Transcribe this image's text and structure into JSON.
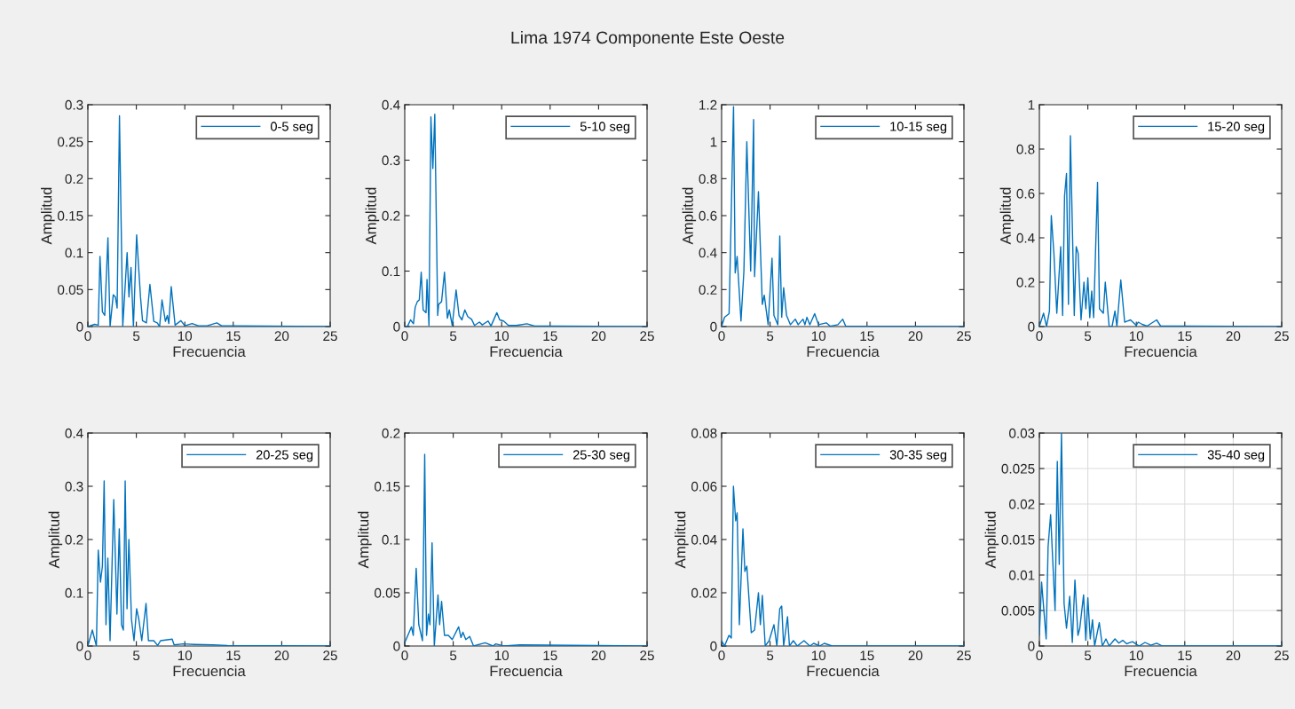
{
  "chart_data": [
    {
      "type": "line",
      "xlabel": "Frecuencia",
      "ylabel": "Amplitud",
      "xlim": [
        0,
        25
      ],
      "ylim": [
        0,
        0.3
      ],
      "xticks": [
        0,
        5,
        10,
        15,
        20,
        25
      ],
      "yticks": [
        0,
        0.05,
        0.1,
        0.15,
        0.2,
        0.25,
        0.3
      ],
      "legend": "top right",
      "grid": false,
      "series": [
        {
          "name": "0-5 seg",
          "color": "#0072bd",
          "x": [
            0,
            0.7,
            1.07,
            1.25,
            1.5,
            1.74,
            2.07,
            2.29,
            2.62,
            2.84,
            3.02,
            3.26,
            3.6,
            4.05,
            4.24,
            4.45,
            4.7,
            5.03,
            5.43,
            5.64,
            6.04,
            6.4,
            6.8,
            7.16,
            7.4,
            7.65,
            8.0,
            8.2,
            8.35,
            8.6,
            9.0,
            9.6,
            10.0,
            10.76,
            11.4,
            12.3,
            13.3,
            13.8,
            15,
            25
          ],
          "values": [
            0,
            0.003,
            0.002,
            0.095,
            0.02,
            0.015,
            0.12,
            0,
            0.043,
            0.04,
            0.025,
            0.285,
            0,
            0.1,
            0.04,
            0.08,
            0,
            0.124,
            0.04,
            0.008,
            0.005,
            0.057,
            0.007,
            0.005,
            0,
            0.036,
            0.007,
            0.015,
            0.004,
            0.054,
            0.002,
            0.008,
            0.001,
            0.004,
            0.001,
            0.001,
            0.005,
            0.001,
            0.001,
            0
          ]
        }
      ]
    },
    {
      "type": "line",
      "title": "Lima 1974 Componente Este Oeste",
      "xlabel": "Frecuencia",
      "ylabel": "Amplitud",
      "xlim": [
        0,
        25
      ],
      "ylim": [
        0,
        0.4
      ],
      "xticks": [
        0,
        5,
        10,
        15,
        20,
        25
      ],
      "yticks": [
        0,
        0.1,
        0.2,
        0.3,
        0.4
      ],
      "legend": "top right",
      "grid": false,
      "series": [
        {
          "name": "5-10 seg",
          "color": "#0072bd",
          "x": [
            0,
            0.3,
            0.6,
            0.9,
            1.08,
            1.3,
            1.5,
            1.7,
            1.9,
            2.2,
            2.3,
            2.5,
            2.7,
            2.9,
            3.1,
            3.4,
            3.5,
            3.8,
            4.1,
            4.4,
            4.6,
            4.9,
            5.3,
            5.6,
            5.9,
            6.2,
            6.5,
            6.9,
            7.2,
            7.7,
            8.0,
            8.6,
            8.9,
            9.5,
            9.8,
            10.2,
            10.7,
            11.5,
            12.6,
            13.4,
            15,
            25
          ],
          "values": [
            0,
            0.001,
            0.012,
            0.005,
            0.035,
            0.045,
            0.048,
            0.098,
            0.03,
            0.025,
            0.085,
            0.002,
            0.378,
            0.285,
            0.383,
            0.02,
            0.04,
            0.045,
            0.098,
            0.015,
            0.03,
            0.002,
            0.066,
            0.02,
            0.012,
            0.03,
            0.018,
            0.013,
            0.002,
            0.008,
            0.003,
            0.01,
            0.001,
            0.025,
            0.012,
            0.01,
            0.002,
            0.002,
            0.005,
            0.001,
            0.001,
            0
          ]
        }
      ]
    },
    {
      "type": "line",
      "xlabel": "Frecuencia",
      "ylabel": "Amplitud",
      "xlim": [
        0,
        25
      ],
      "ylim": [
        0,
        1.2
      ],
      "xticks": [
        0,
        5,
        10,
        15,
        20,
        25
      ],
      "yticks": [
        0,
        0.2,
        0.4,
        0.6,
        0.8,
        1,
        1.2
      ],
      "legend": "top right",
      "grid": false,
      "series": [
        {
          "name": "10-15 seg",
          "color": "#0072bd",
          "x": [
            0,
            0.3,
            0.77,
            1.23,
            1.4,
            1.6,
            2.0,
            2.3,
            2.6,
            3.0,
            3.3,
            3.4,
            3.8,
            4.2,
            4.4,
            4.8,
            5.2,
            5.4,
            5.8,
            6.0,
            6.2,
            6.4,
            6.7,
            7.1,
            7.6,
            7.9,
            8.4,
            8.6,
            8.8,
            9.1,
            9.6,
            10.0,
            10.8,
            11.2,
            12.0,
            12.5,
            12.8,
            15.1,
            25
          ],
          "values": [
            0,
            0.05,
            0.07,
            1.19,
            0.29,
            0.38,
            0.03,
            0.3,
            1.0,
            0.3,
            1.12,
            0.27,
            0.73,
            0.12,
            0.17,
            0.01,
            0.37,
            0.06,
            0.01,
            0.49,
            0.05,
            0.21,
            0.06,
            0.01,
            0.04,
            0.01,
            0.04,
            0.01,
            0.05,
            0.01,
            0.07,
            0.01,
            0.02,
            0.002,
            0.01,
            0.04,
            0.002,
            0.002,
            0
          ]
        }
      ]
    },
    {
      "type": "line",
      "xlabel": "Frecuencia",
      "ylabel": "Amplitud",
      "xlim": [
        0,
        25
      ],
      "ylim": [
        0,
        1
      ],
      "xticks": [
        0,
        5,
        10,
        15,
        20,
        25
      ],
      "yticks": [
        0,
        0.2,
        0.4,
        0.6,
        0.8,
        1
      ],
      "legend": "top right",
      "grid": false,
      "series": [
        {
          "name": "15-20 seg",
          "color": "#0072bd",
          "x": [
            0,
            0.43,
            0.74,
            1.04,
            1.23,
            1.5,
            1.8,
            2.2,
            2.4,
            2.6,
            2.8,
            3.0,
            3.2,
            3.6,
            3.8,
            4.0,
            4.3,
            4.6,
            4.8,
            5.0,
            5.2,
            5.4,
            5.6,
            6.0,
            6.2,
            6.6,
            6.8,
            7.2,
            7.5,
            7.8,
            8.0,
            8.4,
            8.8,
            9.4,
            10.0,
            10.2,
            10.6,
            11.1,
            12.1,
            12.5,
            14.6,
            25
          ],
          "values": [
            0,
            0.06,
            0,
            0.07,
            0.5,
            0.33,
            0.06,
            0.36,
            0.05,
            0.59,
            0.69,
            0.1,
            0.86,
            0.05,
            0.36,
            0.33,
            0.03,
            0.2,
            0.08,
            0.22,
            0.04,
            0.16,
            0.04,
            0.65,
            0.08,
            0.06,
            0.2,
            0,
            0,
            0.07,
            0,
            0.21,
            0.02,
            0.03,
            0.005,
            0.02,
            0.01,
            0.002,
            0.03,
            0.003,
            0.002,
            0
          ]
        }
      ]
    },
    {
      "type": "line",
      "xlabel": "Frecuencia",
      "ylabel": "Amplitud",
      "xlim": [
        0,
        25
      ],
      "ylim": [
        0,
        0.4
      ],
      "xticks": [
        0,
        5,
        10,
        15,
        20,
        25
      ],
      "yticks": [
        0,
        0.1,
        0.2,
        0.3,
        0.4
      ],
      "legend": "top right",
      "grid": false,
      "series": [
        {
          "name": "20-25 seg",
          "color": "#0072bd",
          "x": [
            0,
            0.46,
            0.88,
            1.07,
            1.3,
            1.5,
            1.68,
            1.87,
            2.06,
            2.29,
            2.67,
            3.0,
            3.24,
            3.47,
            3.66,
            3.85,
            4.04,
            4.23,
            4.5,
            4.76,
            5.03,
            5.26,
            5.56,
            6.0,
            6.25,
            6.6,
            6.8,
            7.2,
            7.5,
            8.7,
            8.9,
            9.8,
            11,
            12.9,
            14.4,
            25
          ],
          "values": [
            0,
            0.03,
            0,
            0.18,
            0.12,
            0.15,
            0.31,
            0.04,
            0.165,
            0.01,
            0.275,
            0.06,
            0.22,
            0.04,
            0.03,
            0.31,
            0.07,
            0.2,
            0.05,
            0.01,
            0.07,
            0.05,
            0.01,
            0.08,
            0.01,
            0.01,
            0.01,
            0.001,
            0.01,
            0.013,
            0.002,
            0.004,
            0.003,
            0.002,
            0.001,
            0
          ]
        }
      ]
    },
    {
      "type": "line",
      "xlabel": "Frecuencia",
      "ylabel": "Amplitud",
      "xlim": [
        0,
        25
      ],
      "ylim": [
        0,
        0.2
      ],
      "xticks": [
        0,
        5,
        10,
        15,
        20,
        25
      ],
      "yticks": [
        0,
        0.05,
        0.1,
        0.15,
        0.2
      ],
      "legend": "top right",
      "grid": false,
      "series": [
        {
          "name": "25-30 seg",
          "color": "#0072bd",
          "x": [
            0,
            0.69,
            0.88,
            1.18,
            1.45,
            1.83,
            2.06,
            2.25,
            2.44,
            2.6,
            2.82,
            3.05,
            3.43,
            3.6,
            3.8,
            4.1,
            4.5,
            4.9,
            5.56,
            5.8,
            6.0,
            6.3,
            6.7,
            7.1,
            8.3,
            9.1,
            9.4,
            10.2,
            11.9,
            25
          ],
          "values": [
            0.003,
            0.018,
            0.01,
            0.073,
            0.02,
            0.005,
            0.18,
            0.01,
            0.03,
            0.02,
            0.097,
            0,
            0.048,
            0.02,
            0.042,
            0.01,
            0.01,
            0.006,
            0.018,
            0.008,
            0.013,
            0.006,
            0.009,
            0,
            0.003,
            0,
            0.002,
            0,
            0.001,
            0
          ]
        }
      ]
    },
    {
      "type": "line",
      "xlabel": "Frecuencia",
      "ylabel": "Amplitud",
      "xlim": [
        0,
        25
      ],
      "ylim": [
        0,
        0.08
      ],
      "xticks": [
        0,
        5,
        10,
        15,
        20,
        25
      ],
      "yticks": [
        0,
        0.02,
        0.04,
        0.06,
        0.08
      ],
      "legend": "top right",
      "grid": false,
      "series": [
        {
          "name": "30-35 seg",
          "color": "#0072bd",
          "x": [
            0,
            0.3,
            0.76,
            1.0,
            1.22,
            1.45,
            1.6,
            1.83,
            2.2,
            2.4,
            2.6,
            3.06,
            3.4,
            3.8,
            4.0,
            4.2,
            4.5,
            4.9,
            5.4,
            5.7,
            6.0,
            6.2,
            6.4,
            6.8,
            7.0,
            7.4,
            7.8,
            8.5,
            9.1,
            9.5,
            10.1,
            10.6,
            11.4,
            25
          ],
          "values": [
            0.002,
            0,
            0.004,
            0.003,
            0.06,
            0.047,
            0.05,
            0.008,
            0.044,
            0.028,
            0.03,
            0.005,
            0.006,
            0.02,
            0.008,
            0.019,
            0,
            0.002,
            0.008,
            0,
            0.014,
            0.015,
            0,
            0.011,
            0,
            0.002,
            0,
            0.002,
            0,
            0.001,
            0,
            0.001,
            0,
            0
          ]
        }
      ]
    },
    {
      "type": "line",
      "xlabel": "Frecuencia",
      "ylabel": "Amplitud",
      "xlim": [
        0,
        25
      ],
      "ylim": [
        0,
        0.03
      ],
      "xticks": [
        0,
        5,
        10,
        15,
        20,
        25
      ],
      "yticks": [
        0,
        0.005,
        0.01,
        0.015,
        0.02,
        0.025,
        0.03
      ],
      "legend": "top right",
      "grid": true,
      "series": [
        {
          "name": "35-40 seg",
          "color": "#0072bd",
          "x": [
            0,
            0.23,
            0.7,
            0.9,
            1.16,
            1.62,
            1.85,
            2.05,
            2.28,
            2.55,
            2.8,
            3.13,
            3.4,
            3.67,
            3.98,
            4.17,
            4.56,
            4.79,
            5.0,
            5.25,
            5.48,
            5.7,
            6.18,
            6.5,
            6.87,
            7.2,
            7.8,
            8.2,
            8.6,
            9.0,
            9.6,
            10.3,
            10.9,
            11.5,
            12.1,
            12.7,
            25
          ],
          "values": [
            0.0015,
            0.009,
            0.001,
            0.014,
            0.0185,
            0.005,
            0.026,
            0.0115,
            0.03,
            0.006,
            0.0025,
            0.007,
            0.0005,
            0.0093,
            0.0015,
            0.0025,
            0.0072,
            0.0008,
            0.0068,
            0.001,
            0.0037,
            0,
            0.0033,
            0,
            0.001,
            0,
            0.001,
            0.0004,
            0.0008,
            0.0003,
            0.0006,
            0,
            0.0005,
            0.0001,
            0.0004,
            0,
            0
          ]
        }
      ]
    }
  ]
}
